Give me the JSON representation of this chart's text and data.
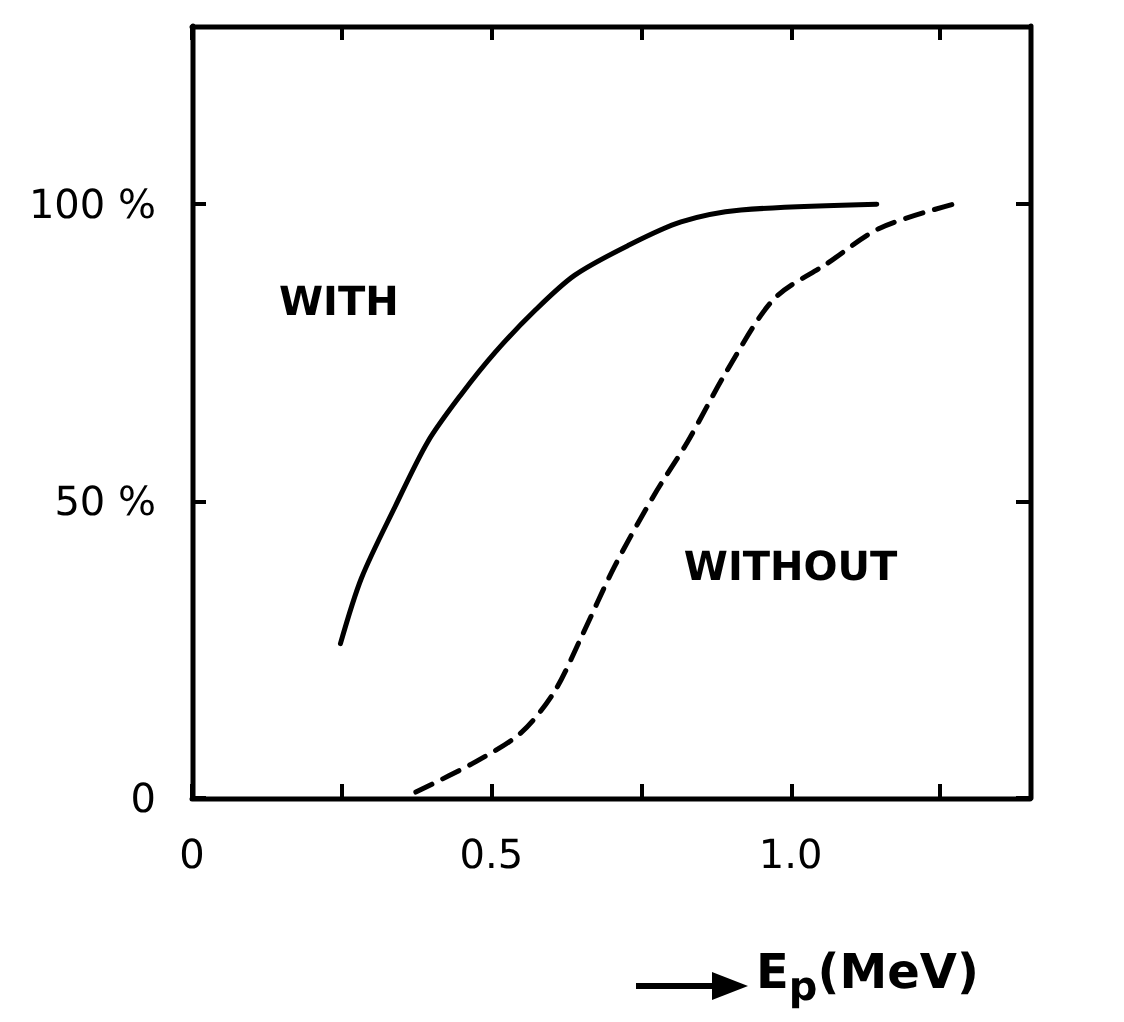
{
  "chart_data": {
    "type": "line",
    "xlabel": "E$_{p}$(MeV)",
    "xlim": [
      0,
      1.4
    ],
    "xticks": [
      0,
      {
        "value": 0.25,
        "label": null
      },
      0.5,
      {
        "value": 0.75,
        "label": null
      },
      {
        "value": 1.0,
        "label": "1.0"
      },
      {
        "value": 1.25,
        "label": null
      }
    ],
    "ylim": [
      0,
      130
    ],
    "yticks": [
      0,
      {
        "value": 50,
        "label": "50 %"
      },
      {
        "value": 100,
        "label": "100 %"
      }
    ],
    "grid": false,
    "marker": "none",
    "series": [
      {
        "name": "WITH",
        "color": "#000000",
        "line_style": "solid",
        "x": [
          0.248,
          0.283,
          0.339,
          0.394,
          0.45,
          0.506,
          0.572,
          0.639,
          0.728,
          0.817,
          0.917,
          1.144
        ],
        "values": [
          26,
          37,
          49,
          60,
          68,
          75,
          82,
          88,
          93,
          97,
          99,
          100
        ]
      },
      {
        "name": "WITHOUT",
        "color": "#000000",
        "line_style": "dashed",
        "x": [
          0.374,
          0.472,
          0.55,
          0.606,
          0.65,
          0.706,
          0.772,
          0.828,
          0.894,
          0.972,
          1.061,
          1.15,
          1.272
        ],
        "values": [
          1,
          6,
          11,
          18,
          27,
          39,
          51,
          60,
          72,
          84,
          90,
          96,
          100
        ]
      }
    ]
  }
}
